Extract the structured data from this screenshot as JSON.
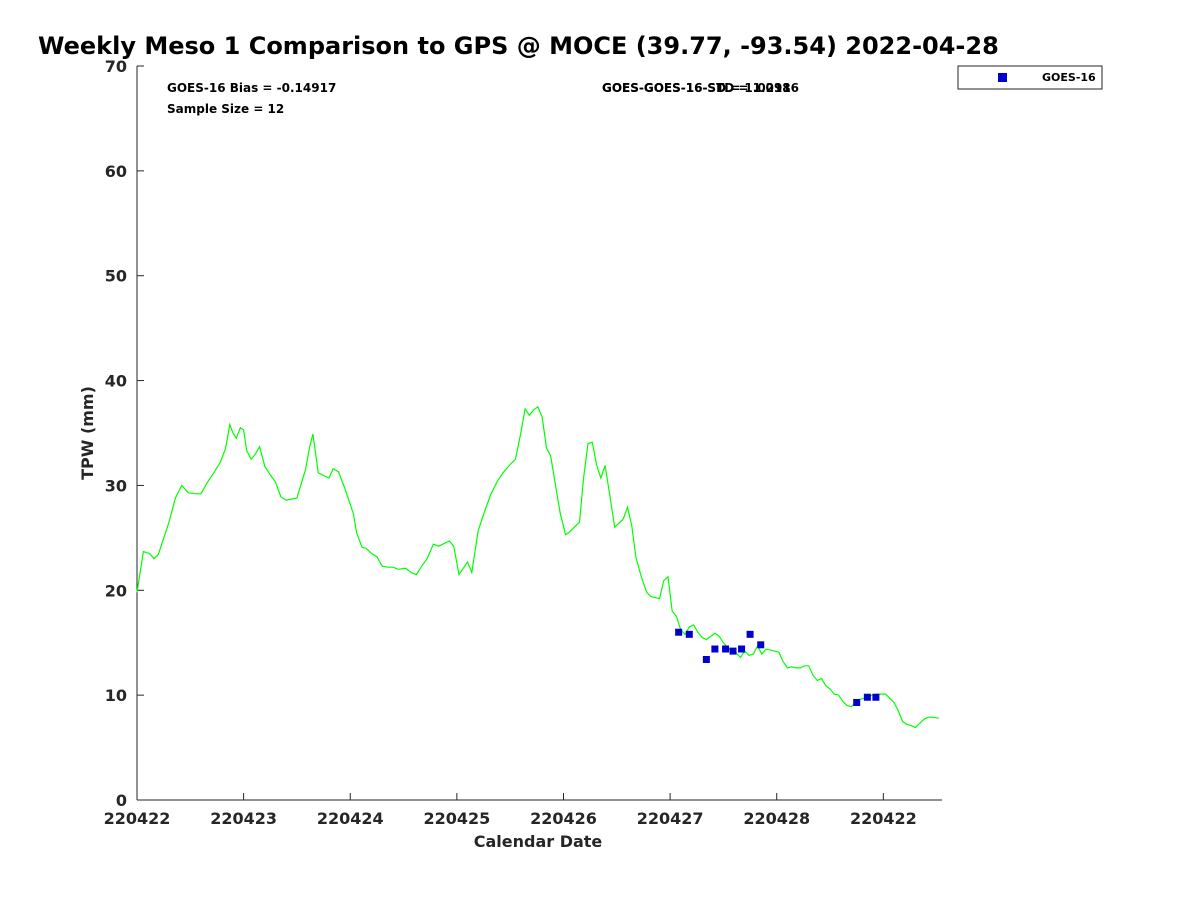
{
  "chart_data": {
    "type": "line",
    "title": "Weekly Meso 1 Comparison to GPS @ MOCE (39.77, -93.54) 2022-04-28",
    "xlabel": "Calendar Date",
    "ylabel": "TPW (mm)",
    "ylim": [
      0,
      70
    ],
    "xlim": [
      0,
      7.55
    ],
    "y_ticks": [
      0,
      10,
      20,
      30,
      40,
      50,
      60,
      70
    ],
    "x_ticks": [
      {
        "x": 0,
        "label": "220422"
      },
      {
        "x": 1,
        "label": "220423"
      },
      {
        "x": 2,
        "label": "220424"
      },
      {
        "x": 3,
        "label": "220425"
      },
      {
        "x": 4,
        "label": "220426"
      },
      {
        "x": 5,
        "label": "220427"
      },
      {
        "x": 6,
        "label": "220428"
      },
      {
        "x": 7,
        "label": "220422"
      }
    ],
    "grid": false,
    "legend_position": "top-right",
    "annotations": [
      "GOES-16 Bias = -0.14917",
      "Sample Size = 12",
      "GOES-GOES-16-STD = 1.0186",
      "GOES-GOES-16-SD = 1.0291"
    ],
    "series": [
      {
        "name": "",
        "kind": "line",
        "color": "#00ff00",
        "points": [
          [
            0.0,
            19.8
          ],
          [
            0.06,
            23.7
          ],
          [
            0.12,
            23.5
          ],
          [
            0.16,
            23.0
          ],
          [
            0.2,
            23.4
          ],
          [
            0.3,
            26.5
          ],
          [
            0.36,
            28.8
          ],
          [
            0.42,
            30.0
          ],
          [
            0.48,
            29.3
          ],
          [
            0.55,
            29.2
          ],
          [
            0.6,
            29.2
          ],
          [
            0.66,
            30.3
          ],
          [
            0.72,
            31.2
          ],
          [
            0.78,
            32.2
          ],
          [
            0.83,
            33.5
          ],
          [
            0.87,
            35.8
          ],
          [
            0.9,
            35.0
          ],
          [
            0.93,
            34.5
          ],
          [
            0.97,
            35.5
          ],
          [
            1.0,
            35.3
          ],
          [
            1.03,
            33.3
          ],
          [
            1.07,
            32.5
          ],
          [
            1.11,
            33.0
          ],
          [
            1.15,
            33.7
          ],
          [
            1.2,
            31.8
          ],
          [
            1.25,
            31.0
          ],
          [
            1.3,
            30.3
          ],
          [
            1.35,
            28.9
          ],
          [
            1.4,
            28.6
          ],
          [
            1.45,
            28.7
          ],
          [
            1.5,
            28.8
          ],
          [
            1.58,
            31.5
          ],
          [
            1.62,
            33.7
          ],
          [
            1.65,
            34.9
          ],
          [
            1.7,
            31.2
          ],
          [
            1.76,
            30.9
          ],
          [
            1.8,
            30.7
          ],
          [
            1.84,
            31.6
          ],
          [
            1.89,
            31.3
          ],
          [
            1.95,
            29.7
          ],
          [
            2.0,
            28.2
          ],
          [
            2.03,
            27.3
          ],
          [
            2.06,
            25.5
          ],
          [
            2.11,
            24.1
          ],
          [
            2.15,
            24.0
          ],
          [
            2.2,
            23.5
          ],
          [
            2.25,
            23.2
          ],
          [
            2.3,
            22.3
          ],
          [
            2.35,
            22.2
          ],
          [
            2.4,
            22.2
          ],
          [
            2.45,
            22.0
          ],
          [
            2.52,
            22.1
          ],
          [
            2.57,
            21.7
          ],
          [
            2.62,
            21.5
          ],
          [
            2.67,
            22.3
          ],
          [
            2.72,
            23.0
          ],
          [
            2.78,
            24.4
          ],
          [
            2.83,
            24.2
          ],
          [
            2.89,
            24.5
          ],
          [
            2.93,
            24.7
          ],
          [
            2.97,
            24.2
          ],
          [
            3.02,
            21.5
          ],
          [
            3.06,
            22.1
          ],
          [
            3.1,
            22.7
          ],
          [
            3.14,
            21.7
          ],
          [
            3.2,
            25.7
          ],
          [
            3.26,
            27.5
          ],
          [
            3.32,
            29.2
          ],
          [
            3.38,
            30.4
          ],
          [
            3.44,
            31.3
          ],
          [
            3.5,
            32.0
          ],
          [
            3.55,
            32.5
          ],
          [
            3.6,
            35.0
          ],
          [
            3.64,
            37.3
          ],
          [
            3.68,
            36.7
          ],
          [
            3.72,
            37.2
          ],
          [
            3.76,
            37.5
          ],
          [
            3.8,
            36.5
          ],
          [
            3.84,
            33.6
          ],
          [
            3.88,
            32.8
          ],
          [
            3.92,
            30.3
          ],
          [
            3.97,
            27.3
          ],
          [
            4.02,
            25.3
          ],
          [
            4.06,
            25.6
          ],
          [
            4.1,
            26.0
          ],
          [
            4.15,
            26.5
          ],
          [
            4.19,
            30.8
          ],
          [
            4.23,
            34.0
          ],
          [
            4.27,
            34.1
          ],
          [
            4.31,
            32.0
          ],
          [
            4.35,
            30.7
          ],
          [
            4.39,
            31.9
          ],
          [
            4.44,
            28.7
          ],
          [
            4.48,
            26.0
          ],
          [
            4.52,
            26.4
          ],
          [
            4.56,
            26.8
          ],
          [
            4.6,
            27.9
          ],
          [
            4.64,
            26.2
          ],
          [
            4.68,
            23.1
          ],
          [
            4.73,
            21.3
          ],
          [
            4.78,
            19.8
          ],
          [
            4.82,
            19.4
          ],
          [
            4.86,
            19.3
          ],
          [
            4.9,
            19.2
          ],
          [
            4.94,
            20.9
          ],
          [
            4.98,
            21.3
          ],
          [
            5.02,
            18.0
          ],
          [
            5.06,
            17.5
          ],
          [
            5.1,
            16.2
          ],
          [
            5.14,
            15.8
          ],
          [
            5.18,
            16.5
          ],
          [
            5.22,
            16.7
          ],
          [
            5.26,
            16.0
          ],
          [
            5.3,
            15.5
          ],
          [
            5.34,
            15.3
          ],
          [
            5.38,
            15.6
          ],
          [
            5.42,
            15.9
          ],
          [
            5.46,
            15.6
          ],
          [
            5.5,
            15.0
          ],
          [
            5.54,
            14.5
          ],
          [
            5.58,
            14.2
          ],
          [
            5.62,
            14.0
          ],
          [
            5.66,
            13.6
          ],
          [
            5.7,
            14.2
          ],
          [
            5.74,
            13.8
          ],
          [
            5.78,
            13.9
          ],
          [
            5.82,
            14.7
          ],
          [
            5.86,
            13.9
          ],
          [
            5.9,
            14.4
          ],
          [
            5.94,
            14.3
          ],
          [
            5.98,
            14.2
          ],
          [
            6.02,
            14.1
          ],
          [
            6.06,
            13.2
          ],
          [
            6.1,
            12.6
          ],
          [
            6.14,
            12.7
          ],
          [
            6.18,
            12.6
          ],
          [
            6.22,
            12.6
          ],
          [
            6.26,
            12.8
          ],
          [
            6.3,
            12.8
          ],
          [
            6.34,
            11.9
          ],
          [
            6.38,
            11.4
          ],
          [
            6.42,
            11.6
          ],
          [
            6.46,
            10.9
          ],
          [
            6.5,
            10.6
          ],
          [
            6.54,
            10.1
          ],
          [
            6.58,
            10.0
          ],
          [
            6.62,
            9.4
          ],
          [
            6.66,
            9.0
          ],
          [
            6.7,
            8.9
          ],
          [
            6.74,
            9.3
          ],
          [
            6.78,
            9.6
          ],
          [
            6.82,
            9.7
          ],
          [
            6.86,
            9.9
          ],
          [
            6.9,
            10.0
          ],
          [
            6.94,
            10.1
          ],
          [
            6.98,
            10.1
          ],
          [
            7.02,
            10.1
          ],
          [
            7.06,
            9.7
          ],
          [
            7.1,
            9.3
          ],
          [
            7.14,
            8.5
          ],
          [
            7.18,
            7.5
          ],
          [
            7.22,
            7.2
          ],
          [
            7.26,
            7.1
          ],
          [
            7.3,
            6.9
          ],
          [
            7.34,
            7.3
          ],
          [
            7.38,
            7.7
          ],
          [
            7.42,
            7.9
          ],
          [
            7.46,
            7.9
          ],
          [
            7.52,
            7.8
          ]
        ]
      },
      {
        "name": "GOES-16",
        "kind": "scatter",
        "color": "#0000cc",
        "points": [
          [
            5.08,
            16.0
          ],
          [
            5.18,
            15.8
          ],
          [
            5.34,
            13.4
          ],
          [
            5.42,
            14.4
          ],
          [
            5.52,
            14.4
          ],
          [
            5.59,
            14.2
          ],
          [
            5.67,
            14.4
          ],
          [
            5.75,
            15.8
          ],
          [
            5.85,
            14.8
          ],
          [
            6.75,
            9.3
          ],
          [
            6.85,
            9.8
          ],
          [
            6.93,
            9.8
          ]
        ]
      }
    ]
  }
}
